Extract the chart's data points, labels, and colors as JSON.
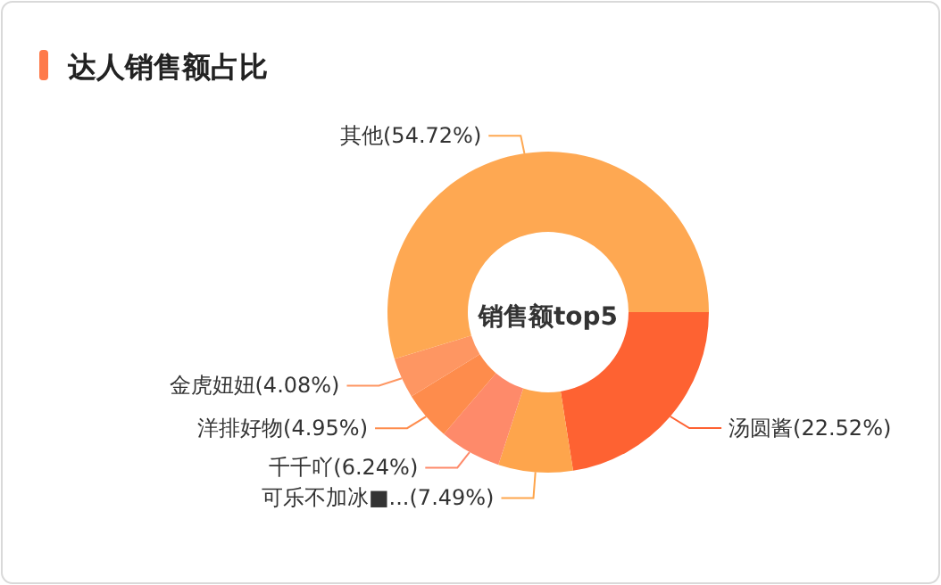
{
  "chart_data": {
    "type": "donut",
    "title": "达人销售额占比",
    "categories": [
      "汤圆酱",
      "可乐不加冰■...",
      "千千吖",
      "洋排好物",
      "金虎妞妞",
      "其他"
    ],
    "values": [
      22.52,
      7.49,
      6.24,
      4.95,
      4.08,
      54.72
    ],
    "colors": [
      "#fe6232",
      "#fea54c",
      "#fe8a6a",
      "#fe8c4c",
      "#fe9662",
      "#fea852"
    ],
    "value_labels": [
      "(22.52%)",
      "(7.49%)",
      "(6.24%)",
      "(4.95%)",
      "(4.08%)",
      "(54.72%)"
    ],
    "annotations": [
      "销售额top5"
    ]
  }
}
